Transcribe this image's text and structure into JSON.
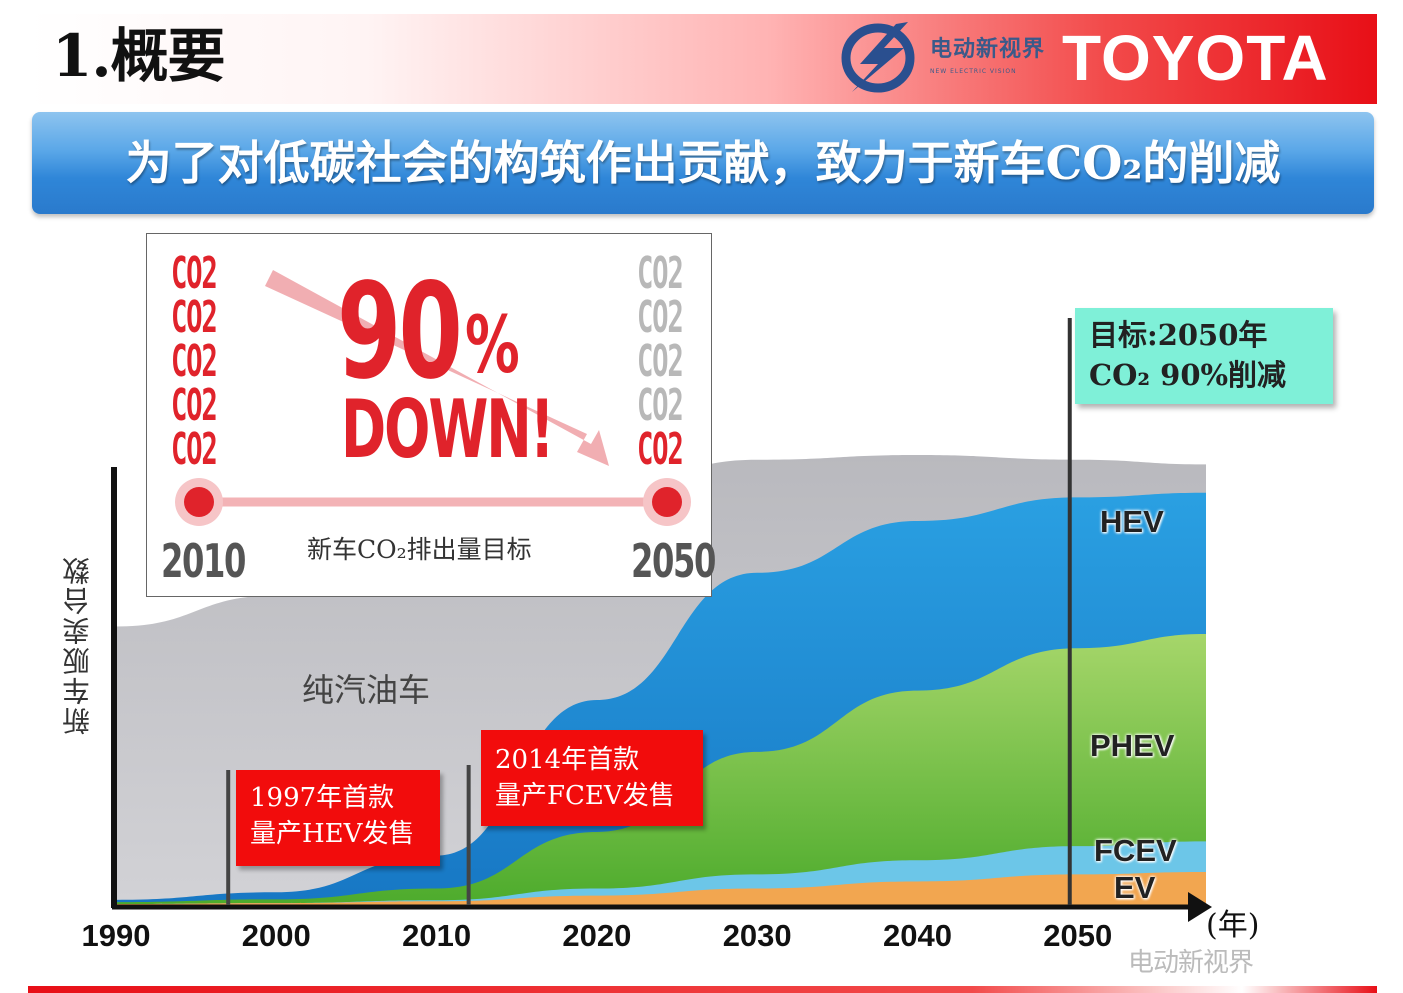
{
  "header": {
    "title": "1.概要",
    "logo_text": "电动新视界",
    "logo_sub": "NEW ELECTRIC VISION",
    "brand": "TOYOTA"
  },
  "banner": {
    "text": "为了对低碳社会的构筑作出贡献，致力于新车CO₂的削减"
  },
  "inset": {
    "co2_label": "CO2",
    "percent": "90",
    "percent_sign": "%",
    "down": "DOWN!",
    "start_year": "2010",
    "end_year": "2050",
    "caption": "新车CO₂排出量目标"
  },
  "target_box": {
    "line1": "目标:2050年",
    "line2": "CO₂ 90%削减"
  },
  "flags": [
    {
      "line1": "1997年首款",
      "line2": "量产HEV发售"
    },
    {
      "line1": "2014年首款",
      "line2": "量产FCEV发售"
    }
  ],
  "watermark": "电动新视界",
  "colors": {
    "accent_red": "#e0232b",
    "banner_blue": "#2f86d8",
    "gasoline": "#c8c8cc",
    "hev": "#1f8fd6",
    "phev": "#6fbf3a",
    "fcev": "#6cc6e8",
    "ev": "#f2a650",
    "target_box": "#7ff0d8"
  },
  "chart_data": {
    "type": "area",
    "title": "",
    "xlabel": "(年)",
    "ylabel": "新车贩卖台数",
    "x_ticks": [
      "1990",
      "2000",
      "2010",
      "2020",
      "2030",
      "2040",
      "2050"
    ],
    "xlim": [
      1990,
      2058
    ],
    "stacked": true,
    "series": [
      {
        "name": "EV",
        "color": "#f2a650",
        "x": [
          1990,
          2000,
          2010,
          2020,
          2030,
          2040,
          2050,
          2058
        ],
        "values": [
          0.2,
          0.4,
          0.8,
          2,
          3.5,
          5,
          6.5,
          7
        ]
      },
      {
        "name": "FCEV",
        "color": "#6cc6e8",
        "x": [
          1990,
          2000,
          2010,
          2020,
          2030,
          2040,
          2050,
          2058
        ],
        "values": [
          0,
          0,
          0.2,
          1.5,
          3,
          4.5,
          6,
          6.5
        ]
      },
      {
        "name": "PHEV",
        "color": "#6fbf3a",
        "x": [
          1990,
          2000,
          2010,
          2020,
          2030,
          2040,
          2050,
          2058
        ],
        "values": [
          0.4,
          0.8,
          2.5,
          12,
          26,
          36,
          42,
          44
        ]
      },
      {
        "name": "HEV",
        "color": "#1f8fd6",
        "x": [
          1990,
          2000,
          2010,
          2020,
          2030,
          2040,
          2050,
          2058
        ],
        "values": [
          0.5,
          1.5,
          7,
          28,
          38,
          36,
          32,
          30
        ]
      },
      {
        "name": "纯汽油车",
        "color": "#c8c8cc",
        "x": [
          1990,
          2000,
          2010,
          2020,
          2030,
          2040,
          2050,
          2058
        ],
        "values": [
          58,
          63,
          66,
          45,
          24,
          14,
          8,
          6
        ]
      }
    ],
    "annotations": [
      {
        "text": "1997年首款量产HEV发售",
        "x": 1997
      },
      {
        "text": "2014年首款量产FCEV发售",
        "x": 2012
      },
      {
        "text": "目标:2050年 CO₂ 90%削减",
        "x": 2049.5
      }
    ],
    "grid": false,
    "legend": "inline labels at right"
  }
}
